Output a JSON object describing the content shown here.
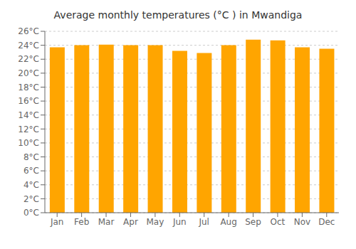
{
  "chart_data": {
    "type": "bar",
    "title": "Average monthly temperatures (°C ) in Mwandiga",
    "categories": [
      "Jan",
      "Feb",
      "Mar",
      "Apr",
      "May",
      "Jun",
      "Jul",
      "Aug",
      "Sep",
      "Oct",
      "Nov",
      "Dec"
    ],
    "values": [
      23.7,
      24.0,
      24.1,
      24.0,
      24.0,
      23.2,
      22.9,
      24.0,
      24.8,
      24.7,
      23.7,
      23.5
    ],
    "color": "#FFA500",
    "ylim": [
      0,
      26
    ],
    "yticks": [
      {
        "value": 0,
        "label": "0°C"
      },
      {
        "value": 2,
        "label": "2°C"
      },
      {
        "value": 4,
        "label": "4°C"
      },
      {
        "value": 6,
        "label": "6°C"
      },
      {
        "value": 8,
        "label": "8°C"
      },
      {
        "value": 10,
        "label": "10°C"
      },
      {
        "value": 12,
        "label": "12°C"
      },
      {
        "value": 14,
        "label": "14°C"
      },
      {
        "value": 16,
        "label": "16°C"
      },
      {
        "value": 18,
        "label": "18°C"
      },
      {
        "value": 20,
        "label": "20°C"
      },
      {
        "value": 22,
        "label": "22°C"
      },
      {
        "value": 24,
        "label": "24°C"
      },
      {
        "value": 26,
        "label": "26°C"
      }
    ],
    "grid": true
  }
}
